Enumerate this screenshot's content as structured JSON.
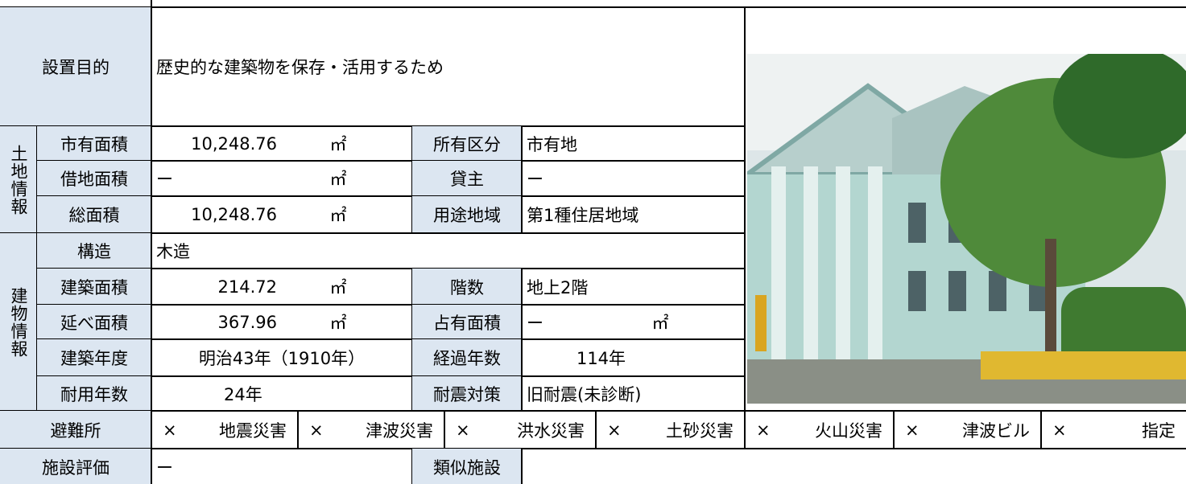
{
  "purpose": {
    "label": "設置目的",
    "text": "歴史的な建築物を保存・活用するため"
  },
  "land": {
    "heading": "土地情報",
    "rows": [
      {
        "label": "市有面積",
        "value": "10,248.76",
        "unit": "㎡",
        "label2": "所有区分",
        "value2": "市有地"
      },
      {
        "label": "借地面積",
        "value": "ー",
        "unit": "㎡",
        "label2": "貸主",
        "value2": "ー"
      },
      {
        "label": "総面積",
        "value": "10,248.76",
        "unit": "㎡",
        "label2": "用途地域",
        "value2": "第1種住居地域"
      }
    ]
  },
  "building": {
    "heading": "建物情報",
    "structure": {
      "label": "構造",
      "value": "木造"
    },
    "rows": [
      {
        "label": "建築面積",
        "value": "214.72",
        "unit": "㎡",
        "label2": "階数",
        "value2": "地上2階"
      },
      {
        "label": "延べ面積",
        "value": "367.96",
        "unit": "㎡",
        "label2": "占有面積",
        "value2": "ー",
        "unit2": "㎡"
      },
      {
        "label": "建築年度",
        "value": "明治43年（1910年）",
        "label2": "経過年数",
        "value2": "114年"
      },
      {
        "label": "耐用年数",
        "value": "24年",
        "label2": "耐震対策",
        "value2": "旧耐震(未診断)"
      }
    ]
  },
  "shelter": {
    "label": "避難所",
    "items": [
      {
        "mark": "×",
        "name": "地震災害"
      },
      {
        "mark": "×",
        "name": "津波災害"
      },
      {
        "mark": "×",
        "name": "洪水災害"
      },
      {
        "mark": "×",
        "name": "土砂災害"
      },
      {
        "mark": "×",
        "name": "火山災害"
      },
      {
        "mark": "×",
        "name": "津波ビル"
      },
      {
        "mark": "×",
        "name": "指定"
      }
    ]
  },
  "evaluation": {
    "label": "施設評価",
    "value": "ー",
    "label2": "類似施設"
  }
}
